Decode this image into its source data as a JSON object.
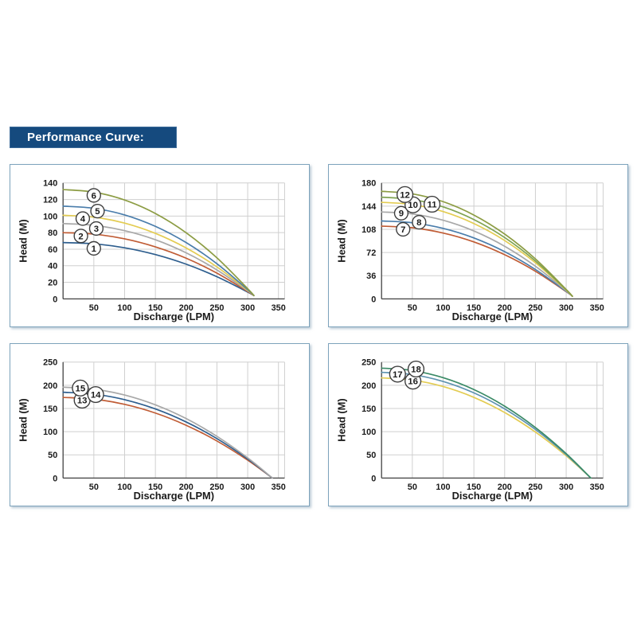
{
  "header": {
    "title": "Performance Curve:",
    "bg_color": "#154a7e",
    "text_color": "#ffffff"
  },
  "colors": {
    "panel_border": "#7da3bc",
    "grid": "#cfcfcf",
    "axis": "#404040",
    "tick_text": "#1a1a1a",
    "label_circle_stroke": "#3d3d3d"
  },
  "chart_data": [
    {
      "id": "top-left",
      "type": "line",
      "title": "",
      "xlabel": "Discharge (LPM)",
      "ylabel": "Head (M)",
      "xlim": [
        0,
        360
      ],
      "ylim": [
        0,
        140
      ],
      "x_ticks": [
        50,
        100,
        150,
        200,
        250,
        300,
        350
      ],
      "y_ticks": [
        0,
        20,
        40,
        60,
        80,
        100,
        120,
        140
      ],
      "grid": true,
      "legend": "circled numbers on curves",
      "x": [
        0,
        50,
        100,
        150,
        200,
        250,
        300,
        310
      ],
      "series": [
        {
          "name": "1",
          "color": "#2e5e8e",
          "values": [
            68,
            66.5,
            61.7,
            53.5,
            41.9,
            26.8,
            8.2,
            4
          ],
          "label": {
            "x": 50,
            "y": 61
          }
        },
        {
          "name": "2",
          "color": "#c05c35",
          "values": [
            80,
            78.2,
            72.5,
            62.8,
            49.1,
            31.1,
            8.9,
            4
          ],
          "label": {
            "x": 29,
            "y": 76
          }
        },
        {
          "name": "3",
          "color": "#a8a8a8",
          "values": [
            91,
            88.9,
            82.4,
            71.4,
            55.6,
            35.0,
            9.7,
            4
          ],
          "label": {
            "x": 54,
            "y": 85
          }
        },
        {
          "name": "4",
          "color": "#e3cc52",
          "values": [
            101,
            98.7,
            91.5,
            79.1,
            61.5,
            38.6,
            10.3,
            4
          ],
          "label": {
            "x": 32,
            "y": 97
          }
        },
        {
          "name": "5",
          "color": "#4a7dab",
          "values": [
            112,
            109.4,
            101.4,
            87.6,
            68.0,
            42.5,
            11.0,
            4
          ],
          "label": {
            "x": 56,
            "y": 106
          }
        },
        {
          "name": "6",
          "color": "#8c9c43",
          "values": [
            132,
            129.0,
            119.4,
            103.1,
            79.9,
            49.6,
            12.3,
            4
          ],
          "label": {
            "x": 50,
            "y": 125
          }
        }
      ]
    },
    {
      "id": "top-right",
      "type": "line",
      "title": "",
      "xlabel": "Discharge (LPM)",
      "ylabel": "Head (M)",
      "xlim": [
        0,
        360
      ],
      "ylim": [
        0,
        180
      ],
      "x_ticks": [
        50,
        100,
        150,
        200,
        250,
        300,
        350
      ],
      "y_ticks": [
        0,
        36,
        72,
        108,
        144,
        180
      ],
      "grid": true,
      "legend": "circled numbers on curves",
      "x": [
        0,
        50,
        100,
        150,
        200,
        250,
        300,
        310
      ],
      "series": [
        {
          "name": "7",
          "color": "#c05c35",
          "values": [
            113,
            110.4,
            102.3,
            88.4,
            68.6,
            42.9,
            11.1,
            4
          ],
          "label": {
            "x": 35,
            "y": 108
          }
        },
        {
          "name": "8",
          "color": "#4a7dab",
          "values": [
            121,
            118.2,
            109.5,
            94.6,
            73.4,
            45.7,
            11.6,
            4
          ],
          "label": {
            "x": 61,
            "y": 119
          }
        },
        {
          "name": "9",
          "color": "#a8a8a8",
          "values": [
            135,
            131.9,
            122.1,
            105.4,
            81.7,
            50.7,
            12.5,
            4
          ],
          "label": {
            "x": 32,
            "y": 133
          }
        },
        {
          "name": "10",
          "color": "#e3cc52",
          "values": [
            150,
            146.5,
            135.6,
            117.0,
            90.6,
            56.1,
            13.5,
            4
          ],
          "label": {
            "x": 51,
            "y": 146
          }
        },
        {
          "name": "11",
          "color": "#7fa351",
          "values": [
            158,
            154.3,
            142.9,
            123.2,
            95.3,
            58.9,
            14.0,
            4
          ],
          "label": {
            "x": 82,
            "y": 147
          }
        },
        {
          "name": "12",
          "color": "#8c9c43",
          "values": [
            167,
            163.1,
            151.0,
            130.2,
            100.6,
            62.1,
            14.6,
            4
          ],
          "label": {
            "x": 38,
            "y": 162
          }
        }
      ]
    },
    {
      "id": "bottom-left",
      "type": "line",
      "title": "",
      "xlabel": "Discharge (LPM)",
      "ylabel": "Head (M)",
      "xlim": [
        0,
        360
      ],
      "ylim": [
        0,
        250
      ],
      "x_ticks": [
        50,
        100,
        150,
        200,
        250,
        300,
        350
      ],
      "y_ticks": [
        0,
        50,
        100,
        150,
        200,
        250
      ],
      "grid": true,
      "legend": "circled numbers on curves",
      "x": [
        0,
        50,
        100,
        150,
        200,
        250,
        300,
        340
      ],
      "series": [
        {
          "name": "13",
          "color": "#c05c35",
          "values": [
            174,
            170.2,
            158.9,
            140.1,
            113.8,
            79.9,
            38.5,
            0
          ],
          "label": {
            "x": 31,
            "y": 168
          }
        },
        {
          "name": "14",
          "color": "#2e5e8e",
          "values": [
            185,
            181.0,
            169.0,
            149.0,
            121.0,
            85.0,
            41.0,
            0
          ],
          "label": {
            "x": 53,
            "y": 180
          }
        },
        {
          "name": "15",
          "color": "#a8a8a8",
          "values": [
            196,
            191.8,
            179.0,
            157.9,
            128.2,
            90.0,
            43.4,
            0
          ],
          "label": {
            "x": 28,
            "y": 194
          }
        }
      ]
    },
    {
      "id": "bottom-right",
      "type": "line",
      "title": "",
      "xlabel": "Discharge (LPM)",
      "ylabel": "Head (M)",
      "xlim": [
        0,
        360
      ],
      "ylim": [
        0,
        250
      ],
      "x_ticks": [
        50,
        100,
        150,
        200,
        250,
        300,
        350
      ],
      "y_ticks": [
        0,
        50,
        100,
        150,
        200,
        250
      ],
      "grid": true,
      "legend": "circled numbers on curves",
      "x": [
        0,
        50,
        100,
        150,
        200,
        250,
        300,
        340
      ],
      "series": [
        {
          "name": "16",
          "color": "#e3cc52",
          "values": [
            216,
            211.3,
            197.3,
            174.0,
            141.3,
            99.2,
            47.8,
            0
          ],
          "label": {
            "x": 51,
            "y": 209
          }
        },
        {
          "name": "17",
          "color": "#5f93b0",
          "values": [
            228,
            223.1,
            208.3,
            183.6,
            149.1,
            104.7,
            50.5,
            0
          ],
          "label": {
            "x": 26,
            "y": 224
          }
        },
        {
          "name": "18",
          "color": "#3a8a66",
          "values": [
            237,
            231.9,
            216.5,
            190.9,
            155.0,
            108.9,
            52.5,
            0
          ],
          "label": {
            "x": 56,
            "y": 235
          }
        }
      ]
    }
  ]
}
